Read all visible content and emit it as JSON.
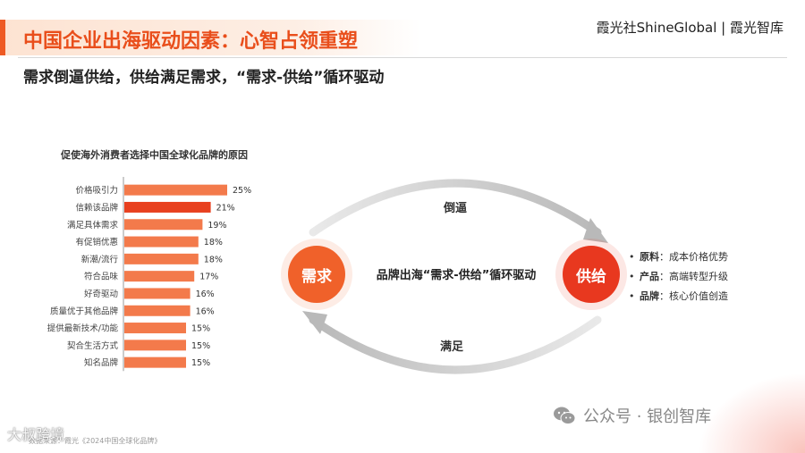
{
  "header": {
    "title": "中国企业出海驱动因素：心智占领重塑",
    "brand": "霞光社ShineGlobal | 霞光智库"
  },
  "subtitle": "需求倒逼供给，供给满足需求，“需求-供给”循环驱动",
  "chart_data": {
    "type": "bar",
    "orientation": "horizontal",
    "title": "促使海外消费者选择中国全球化品牌的原因",
    "categories": [
      "价格吸引力",
      "信赖该品牌",
      "满足具体需求",
      "有促销优惠",
      "新潮/流行",
      "符合品味",
      "好奇驱动",
      "质量优于其他品牌",
      "提供最新技术/功能",
      "契合生活方式",
      "知名品牌"
    ],
    "values": [
      25,
      21,
      19,
      18,
      18,
      17,
      16,
      16,
      15,
      15,
      15
    ],
    "value_labels": [
      "25%",
      "21%",
      "19%",
      "18%",
      "18%",
      "17%",
      "16%",
      "16%",
      "15%",
      "15%",
      "15%"
    ],
    "highlight_index": 1,
    "colors": {
      "bar": "#f37a4b",
      "highlight": "#e8401f"
    },
    "xlim": [
      0,
      25
    ],
    "grid": false,
    "legend": "none"
  },
  "cycle": {
    "demand": "需求",
    "supply": "供给",
    "center": "品牌出海“需求-供给”循环驱动",
    "top_arrow": "倒逼",
    "bottom_arrow": "满足"
  },
  "supply_points": [
    {
      "key": "原料",
      "value": "成本价格优势"
    },
    {
      "key": "产品",
      "value": "高端转型升级"
    },
    {
      "key": "品牌",
      "value": "核心价值创造"
    }
  ],
  "footer": {
    "source": "数据来源：霞光《2024中国全球化品牌》",
    "watermark_left": "大叔跨境",
    "watermark_right": "公众号 · 银创智库"
  }
}
